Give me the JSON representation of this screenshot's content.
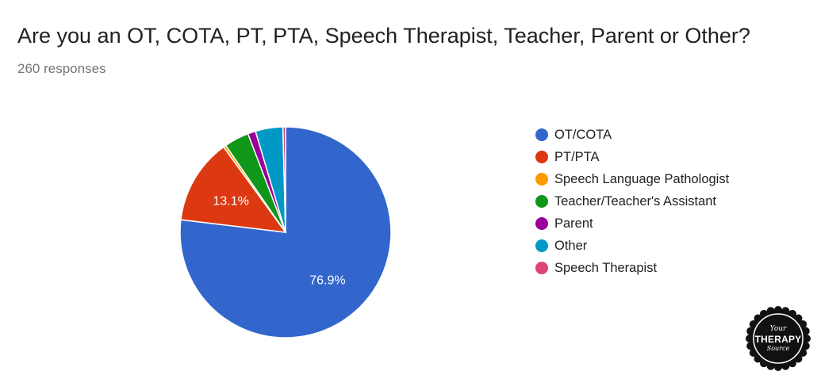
{
  "header": {
    "question": "Are you an OT, COTA, PT, PTA, Speech Therapist, Teacher, Parent or Other?",
    "responses": "260 responses"
  },
  "chart_data": {
    "type": "pie",
    "categories": [
      "OT/COTA",
      "PT/PTA",
      "Speech Language Pathologist",
      "Teacher/Teacher's Assistant",
      "Parent",
      "Other",
      "Speech Therapist"
    ],
    "values": [
      76.9,
      13.1,
      0.4,
      3.8,
      1.2,
      4.2,
      0.4
    ],
    "colors": [
      "#3366cc",
      "#dc3912",
      "#ff9900",
      "#109618",
      "#990099",
      "#0099c6",
      "#dd4477"
    ],
    "labels": [
      "76.9%",
      "13.1%",
      "",
      "",
      "",
      "",
      ""
    ],
    "start_angle": "90 degrees, clockwise",
    "legend_position": "right"
  },
  "watermark": {
    "line1": "Your",
    "line2": "THERAPY",
    "line3": "Source"
  }
}
